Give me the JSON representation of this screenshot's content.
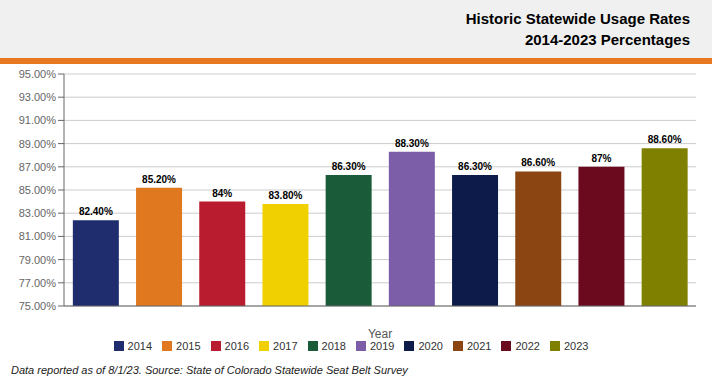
{
  "chart_data": {
    "type": "bar",
    "title": "Historic Statewide Usage Rates\n2014-2023 Percentages",
    "x_label": "Year",
    "categories": [
      "2014",
      "2015",
      "2016",
      "2017",
      "2018",
      "2019",
      "2020",
      "2021",
      "2022",
      "2023"
    ],
    "values": [
      82.4,
      85.2,
      84.0,
      83.8,
      86.3,
      88.3,
      86.3,
      86.6,
      87.0,
      88.6
    ],
    "value_labels": [
      "82.40%",
      "85.20%",
      "84%",
      "83.80%",
      "86.30%",
      "88.30%",
      "86.30%",
      "86.60%",
      "87%",
      "88.60%"
    ],
    "colors": [
      "#1f2d6e",
      "#e07820",
      "#b81c2e",
      "#f0d000",
      "#1a5c3a",
      "#7b5ea7",
      "#0d1b4b",
      "#8b4513",
      "#6b0a1e",
      "#808000"
    ],
    "ylim": [
      75.0,
      95.0
    ],
    "yticks": [
      {
        "value": 75.0,
        "label": "75.00%"
      },
      {
        "value": 77.0,
        "label": "77.00%"
      },
      {
        "value": 79.0,
        "label": "79.00%"
      },
      {
        "value": 81.0,
        "label": "81.00%"
      },
      {
        "value": 83.0,
        "label": "83.00%"
      },
      {
        "value": 85.0,
        "label": "85.00%"
      },
      {
        "value": 87.0,
        "label": "87.00%"
      },
      {
        "value": 89.0,
        "label": "89.00%"
      },
      {
        "value": 91.0,
        "label": "91.00%"
      },
      {
        "value": 93.0,
        "label": "93.00%"
      },
      {
        "value": 95.0,
        "label": "95.00%"
      }
    ],
    "grid": true,
    "legend": "bottom",
    "data_labels": true,
    "tick_labels": "y",
    "annotations": [
      "Data reported as of 8/1/23. Source: State of Colorado Statewide Seat Belt Survey"
    ]
  }
}
